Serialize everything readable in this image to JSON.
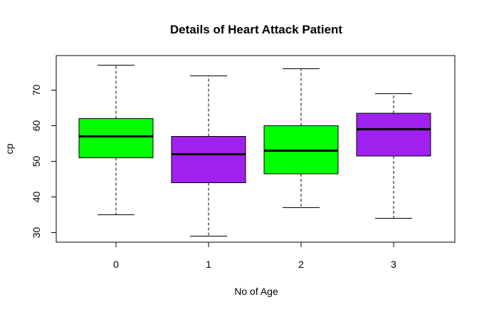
{
  "chart_data": {
    "type": "boxplot",
    "title": "Details of Heart Attack Patient",
    "xlabel": "No of Age",
    "ylabel": "cp",
    "categories": [
      "0",
      "1",
      "2",
      "3"
    ],
    "y_ticks": [
      "30",
      "40",
      "50",
      "60",
      "70"
    ],
    "ylim": [
      27.3,
      79.7
    ],
    "grid": false,
    "boxes": [
      {
        "category": "0",
        "min": 35,
        "q1": 51,
        "median": 57,
        "q3": 62,
        "max": 77,
        "color": "#00ff00"
      },
      {
        "category": "1",
        "min": 29,
        "q1": 44,
        "median": 52,
        "q3": 57,
        "max": 74,
        "color": "#a020f0"
      },
      {
        "category": "2",
        "min": 37,
        "q1": 46.5,
        "median": 53,
        "q3": 60,
        "max": 76,
        "color": "#00ff00"
      },
      {
        "category": "3",
        "min": 34,
        "q1": 51.5,
        "median": 59,
        "q3": 63.5,
        "max": 69,
        "color": "#a020f0"
      }
    ]
  }
}
